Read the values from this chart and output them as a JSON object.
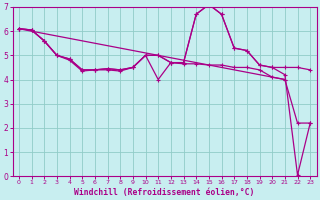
{
  "xlabel": "Windchill (Refroidissement éolien,°C)",
  "bg_color": "#c8eef0",
  "grid_color": "#90ccc8",
  "line_color": "#aa0088",
  "xlim": [
    -0.5,
    23.5
  ],
  "ylim": [
    0,
    7
  ],
  "line1_x": [
    0,
    1,
    2,
    3,
    4,
    5,
    6,
    7,
    8,
    9,
    10,
    11,
    12,
    13,
    14,
    15,
    16,
    17,
    18,
    19,
    20,
    21,
    22,
    23
  ],
  "line1_y": [
    6.1,
    6.05,
    5.6,
    5.0,
    4.8,
    4.35,
    4.4,
    4.4,
    4.35,
    4.5,
    5.0,
    4.0,
    4.7,
    4.65,
    4.65,
    4.6,
    4.6,
    4.5,
    4.5,
    4.4,
    4.1,
    4.0,
    2.2,
    2.2
  ],
  "line2_x": [
    0,
    1,
    2,
    3,
    4,
    5,
    6,
    7,
    8,
    9,
    10,
    11,
    12,
    13,
    14,
    15,
    16,
    17,
    18,
    19,
    20,
    21,
    22,
    23
  ],
  "line2_y": [
    6.1,
    6.05,
    5.6,
    5.0,
    4.85,
    4.4,
    4.4,
    4.45,
    4.4,
    4.5,
    5.0,
    5.0,
    4.7,
    4.7,
    6.7,
    7.1,
    6.7,
    5.3,
    5.2,
    4.6,
    4.5,
    4.5,
    4.5,
    4.4
  ],
  "line3_x": [
    0,
    1,
    2,
    3,
    4,
    5,
    6,
    7,
    8,
    9,
    10,
    11,
    12,
    13,
    14,
    15,
    16,
    17,
    18,
    19,
    20,
    21,
    22,
    23
  ],
  "line3_y": [
    6.1,
    6.05,
    5.6,
    5.0,
    4.85,
    4.4,
    4.4,
    4.45,
    4.4,
    4.5,
    5.0,
    5.0,
    4.7,
    4.7,
    6.7,
    7.1,
    6.7,
    5.3,
    5.2,
    4.6,
    4.5,
    4.2,
    0.05,
    2.2
  ],
  "line4_x": [
    0,
    21
  ],
  "line4_y": [
    6.1,
    4.0
  ],
  "xtick_labels": [
    "0",
    "1",
    "2",
    "3",
    "4",
    "5",
    "6",
    "7",
    "8",
    "9",
    "10",
    "11",
    "12",
    "13",
    "14",
    "15",
    "16",
    "17",
    "18",
    "19",
    "20",
    "21",
    "22",
    "23"
  ],
  "xticks": [
    0,
    1,
    2,
    3,
    4,
    5,
    6,
    7,
    8,
    9,
    10,
    11,
    12,
    13,
    14,
    15,
    16,
    17,
    18,
    19,
    20,
    21,
    22,
    23
  ],
  "yticks": [
    0,
    1,
    2,
    3,
    4,
    5,
    6,
    7
  ]
}
